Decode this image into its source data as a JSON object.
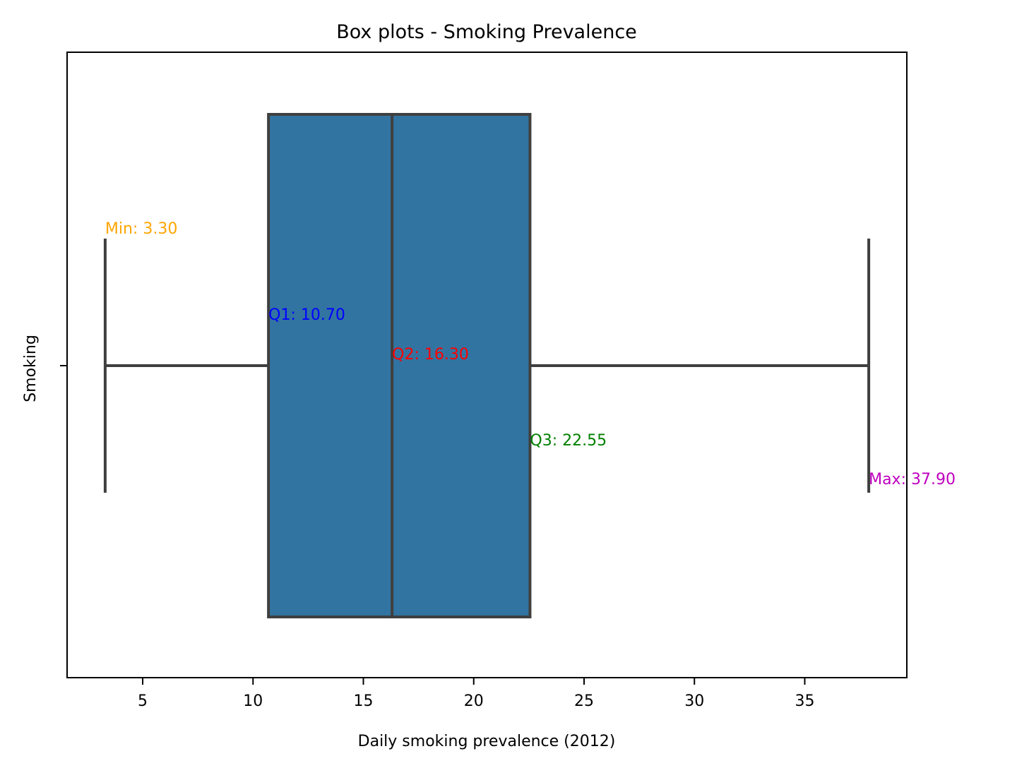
{
  "chart_data": {
    "type": "box",
    "title": "Box plots - Smoking Prevalence",
    "xlabel": "Daily smoking prevalence (2012)",
    "ylabel": "Smoking",
    "xlim": [
      1.575,
      39.625
    ],
    "xticks": [
      5,
      10,
      15,
      20,
      25,
      30,
      35
    ],
    "xtick_labels": [
      "5",
      "10",
      "15",
      "20",
      "25",
      "30",
      "35"
    ],
    "orientation": "horizontal",
    "grid": false,
    "box": {
      "min": 3.3,
      "q1": 10.7,
      "median": 16.3,
      "q3": 22.55,
      "max": 37.9,
      "fill_color": "#3274a1",
      "line_color": "#3f3f3f"
    },
    "annotations": [
      {
        "text": "Min: 3.30",
        "x": 3.3,
        "color": "#ffa500"
      },
      {
        "text": "Q1: 10.70",
        "x": 10.7,
        "color": "#0000ff"
      },
      {
        "text": "Q2: 16.30",
        "x": 16.3,
        "color": "#ff0000"
      },
      {
        "text": "Q3: 22.55",
        "x": 22.55,
        "color": "#008000"
      },
      {
        "text": "Max: 37.90",
        "x": 37.9,
        "color": "#bf00bf"
      }
    ]
  }
}
